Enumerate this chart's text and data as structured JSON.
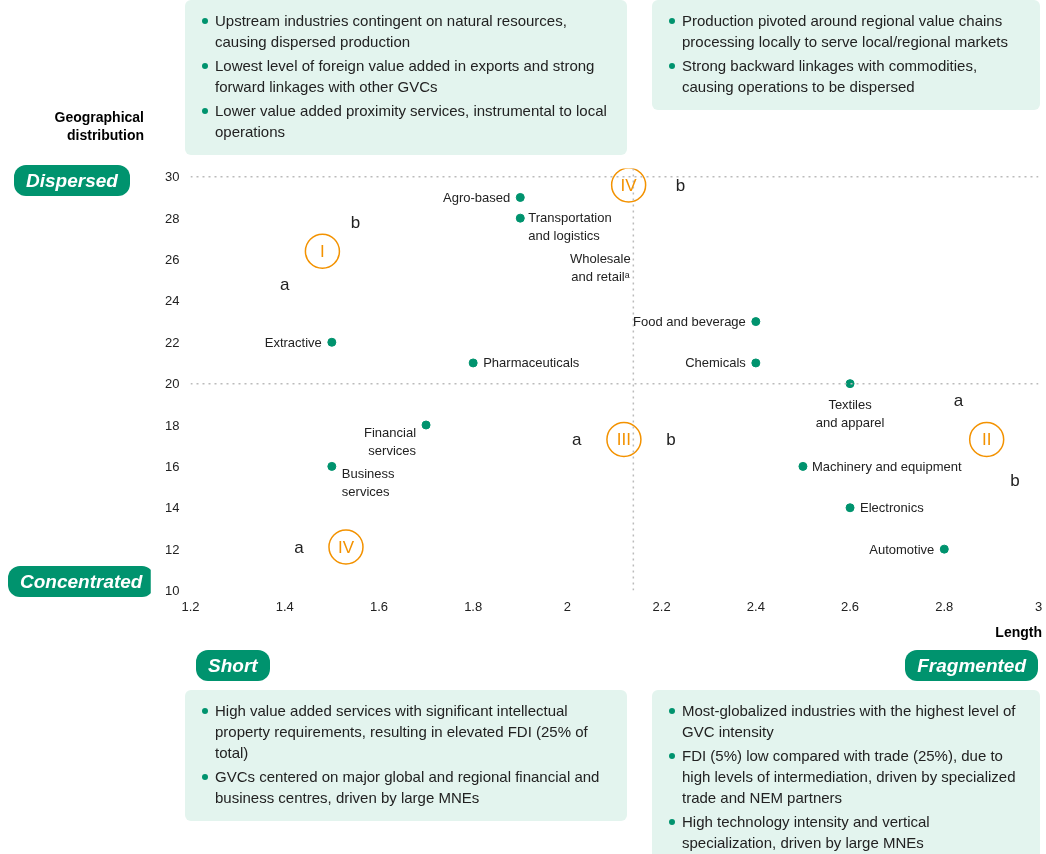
{
  "chart_data": {
    "type": "scatter",
    "xlabel": "Length",
    "ylabel": "Geographical distribution",
    "xlim": [
      1.2,
      3
    ],
    "xticks": [
      1.2,
      1.4,
      1.6,
      1.8,
      2,
      2.2,
      2.4,
      2.6,
      2.8,
      3
    ],
    "ylim": [
      10,
      30.4
    ],
    "yticks": [
      10,
      12,
      14,
      16,
      18,
      20,
      22,
      24,
      26,
      28,
      30
    ],
    "grid": false,
    "legend": false,
    "marker": "circle",
    "ref_lines": [
      {
        "axis": "y",
        "value": 30,
        "color": "#bbbbbb",
        "line_style": "dotted"
      },
      {
        "axis": "y",
        "value": 20,
        "color": "#bbbbbb",
        "line_style": "dotted"
      },
      {
        "axis": "x",
        "value": 2.14,
        "color": "#bbbbbb",
        "line_style": "dotted"
      }
    ],
    "series": [
      {
        "name": "Agro-based",
        "color": "#00936e",
        "x": [
          1.9
        ],
        "values": [
          29
        ]
      },
      {
        "name": "Transportation and logistics",
        "color": "#00936e",
        "x": [
          1.9
        ],
        "values": [
          28
        ]
      },
      {
        "name": "Extractive",
        "color": "#00936e",
        "x": [
          1.5
        ],
        "values": [
          22
        ]
      },
      {
        "name": "Pharmaceuticals",
        "color": "#00936e",
        "x": [
          1.8
        ],
        "values": [
          21
        ]
      },
      {
        "name": "Food and beverage",
        "color": "#00936e",
        "x": [
          2.4
        ],
        "values": [
          23
        ]
      },
      {
        "name": "Chemicals",
        "color": "#00936e",
        "x": [
          2.4
        ],
        "values": [
          21
        ]
      },
      {
        "name": "Textiles and apparel",
        "color": "#00936e",
        "x": [
          2.6
        ],
        "values": [
          20
        ]
      },
      {
        "name": "Financial services",
        "color": "#00936e",
        "x": [
          1.7
        ],
        "values": [
          18
        ]
      },
      {
        "name": "Business services",
        "color": "#00936e",
        "x": [
          1.5
        ],
        "values": [
          16
        ]
      },
      {
        "name": "Machinery and equipment",
        "color": "#00936e",
        "x": [
          2.5
        ],
        "values": [
          16
        ]
      },
      {
        "name": "Electronics",
        "color": "#00936e",
        "x": [
          2.6
        ],
        "values": [
          14
        ]
      },
      {
        "name": "Automotive",
        "color": "#00936e",
        "x": [
          2.8
        ],
        "values": [
          12
        ]
      }
    ],
    "annotations": [
      "Dispersed",
      "Concentrated",
      "Short",
      "Fragmented",
      "Upstream industries contingent on natural resources, causing dispersed production",
      "Lowest level of foreign value added in exports and strong forward linkages with other GVCs",
      "Lower value added proximity services, instrumental to local operations",
      "Production pivoted around regional value chains processing locally to serve local/regional markets",
      "Strong backward linkages with commodities, causing operations to be dispersed",
      "High value added services with significant intellectual property requirements, resulting in elevated FDI (25% of total)",
      "GVCs centered on major global and regional financial and business centres, driven by large MNEs",
      "Most-globalized industries with the highest level of GVC intensity",
      "FDI (5%) low compared with trade (25%), due to high levels of intermediation, driven by specialized trade and NEM partners",
      "High technology intensity and vertical specialization, driven by large MNEs",
      "Wholesale and retailᵃ",
      "I",
      "a",
      "b",
      "II",
      "a",
      "b",
      "III",
      "a",
      "b",
      "IV",
      "b",
      "IV",
      "a"
    ]
  }
}
